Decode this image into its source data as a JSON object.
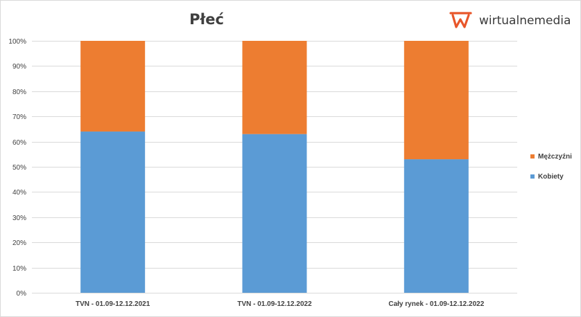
{
  "chart_data": {
    "type": "bar",
    "stacked": true,
    "title": "Płeć",
    "categories": [
      "TVN - 01.09-12.12.2021",
      "TVN - 01.09-12.12.2022",
      "Cały rynek - 01.09-12.12.2022"
    ],
    "series": [
      {
        "name": "Kobiety",
        "values": [
          64,
          63,
          53
        ],
        "color": "#5b9bd5"
      },
      {
        "name": "Mężczyźni",
        "values": [
          36,
          37,
          47
        ],
        "color": "#ed7d31"
      }
    ],
    "yticks": [
      "0%",
      "10%",
      "20%",
      "30%",
      "40%",
      "50%",
      "60%",
      "70%",
      "80%",
      "90%",
      "100%"
    ],
    "ylim": [
      0,
      100
    ],
    "grid": true,
    "legend_position": "right",
    "legend_order": [
      "Mężczyźni",
      "Kobiety"
    ]
  },
  "logo": {
    "text": "wirtualnemedia",
    "color": "#e8562a"
  }
}
